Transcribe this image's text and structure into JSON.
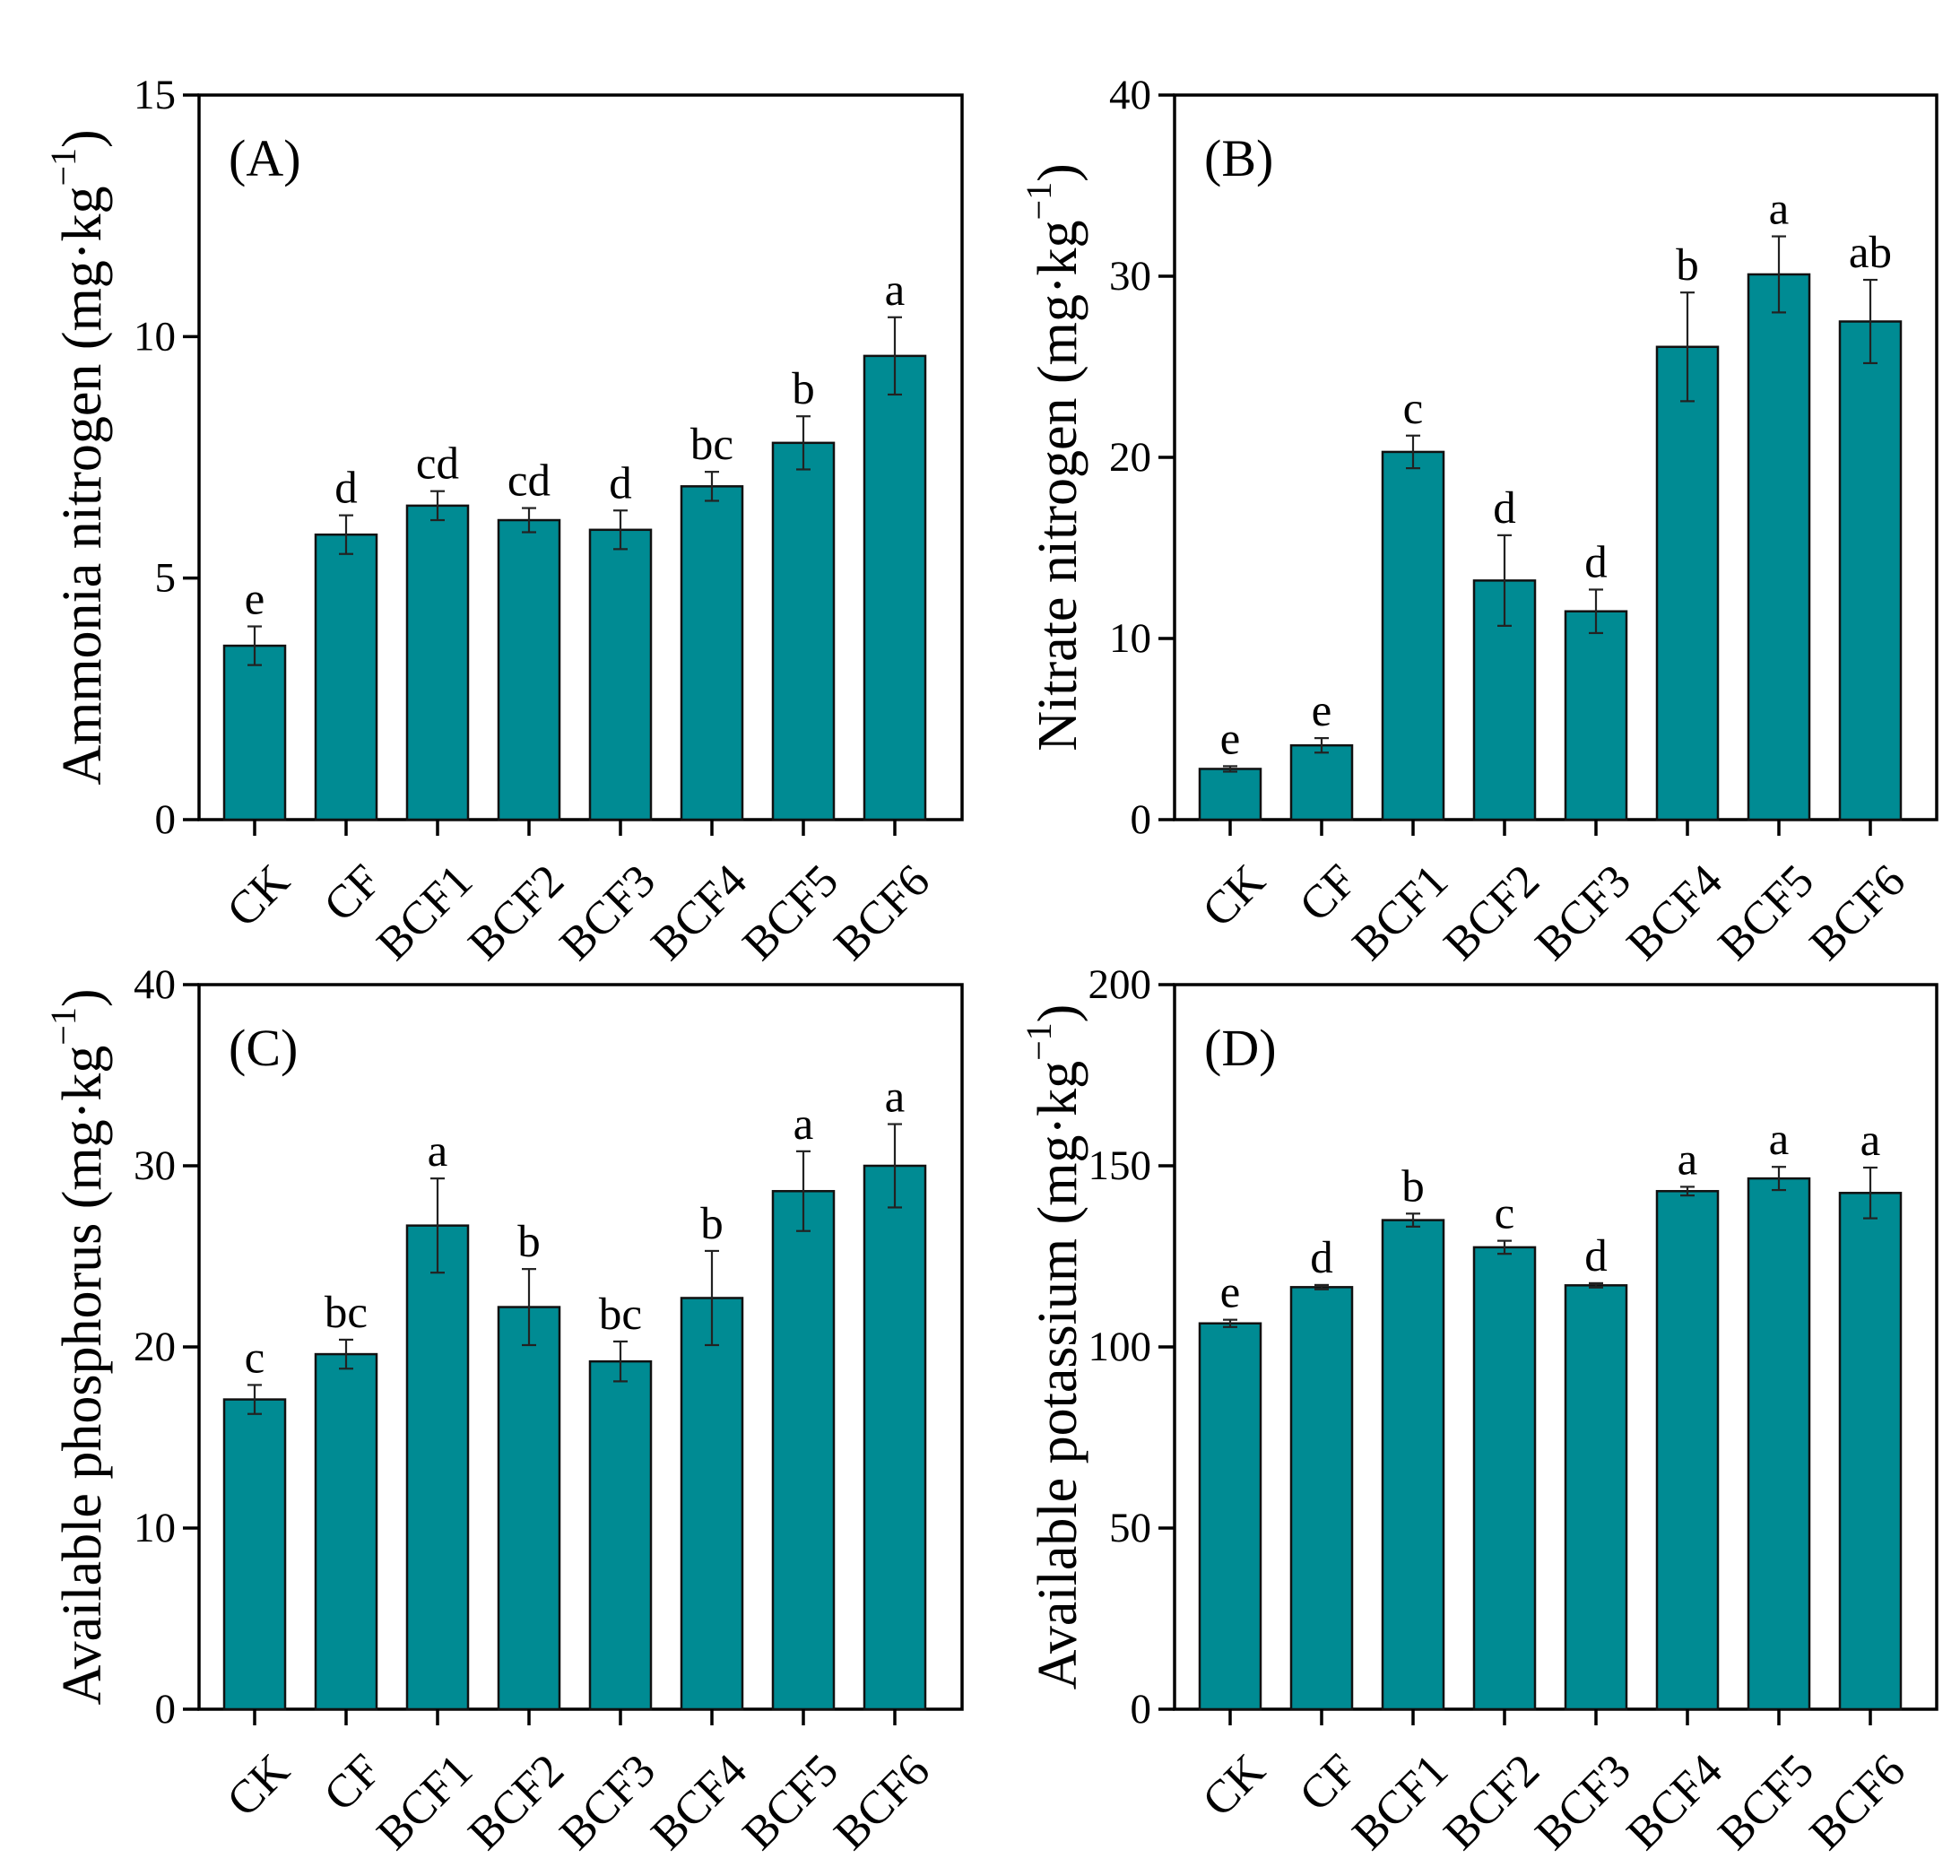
{
  "figure": {
    "bar_color": "#008B93",
    "bar_stroke": "#111111"
  },
  "chart_data": [
    {
      "type": "bar",
      "panel": "(A)",
      "title": "",
      "xlabel": "",
      "ylabel": "Ammonia nitrogen",
      "ylabel_unit_prefix": "(mg·kg",
      "ylabel_unit_exp": "−1",
      "ylabel_unit_suffix": ")",
      "categories": [
        "CK",
        "CF",
        "BCF1",
        "BCF2",
        "BCF3",
        "BCF4",
        "BCF5",
        "BCF6"
      ],
      "values": [
        3.6,
        5.9,
        6.5,
        6.2,
        6.0,
        6.9,
        7.8,
        9.6
      ],
      "errors": [
        0.4,
        0.4,
        0.3,
        0.25,
        0.4,
        0.3,
        0.55,
        0.8
      ],
      "letters": [
        "e",
        "d",
        "cd",
        "cd",
        "d",
        "bc",
        "b",
        "a"
      ],
      "ylim": [
        0,
        15
      ],
      "yticks": [
        0,
        5,
        10,
        15
      ],
      "ytick_labels": [
        "0",
        "5",
        "10",
        "15"
      ]
    },
    {
      "type": "bar",
      "panel": "(B)",
      "title": "",
      "xlabel": "",
      "ylabel": "Nitrate nitrogen",
      "ylabel_unit_prefix": "(mg·kg",
      "ylabel_unit_exp": "−1",
      "ylabel_unit_suffix": ")",
      "categories": [
        "CK",
        "CF",
        "BCF1",
        "BCF2",
        "BCF3",
        "BCF4",
        "BCF5",
        "BCF6"
      ],
      "values": [
        2.8,
        4.1,
        20.3,
        13.2,
        11.5,
        26.1,
        30.1,
        27.5
      ],
      "errors": [
        0.15,
        0.4,
        0.9,
        2.5,
        1.2,
        3.0,
        2.1,
        2.3
      ],
      "letters": [
        "e",
        "e",
        "c",
        "d",
        "d",
        "b",
        "a",
        "ab"
      ],
      "ylim": [
        0,
        40
      ],
      "yticks": [
        0,
        10,
        20,
        30,
        40
      ],
      "ytick_labels": [
        "0",
        "10",
        "20",
        "30",
        "40"
      ]
    },
    {
      "type": "bar",
      "panel": "(C)",
      "title": "",
      "xlabel": "",
      "ylabel": "Available phosphorus",
      "ylabel_unit_prefix": "(mg·kg",
      "ylabel_unit_exp": "−1",
      "ylabel_unit_suffix": ")",
      "categories": [
        "CK",
        "CF",
        "BCF1",
        "BCF2",
        "BCF3",
        "BCF4",
        "BCF5",
        "BCF6"
      ],
      "values": [
        17.1,
        19.6,
        26.7,
        22.2,
        19.2,
        22.7,
        28.6,
        30.0
      ],
      "errors": [
        0.8,
        0.8,
        2.6,
        2.1,
        1.1,
        2.6,
        2.2,
        2.3
      ],
      "letters": [
        "c",
        "bc",
        "a",
        "b",
        "bc",
        "b",
        "a",
        "a"
      ],
      "ylim": [
        0,
        40
      ],
      "yticks": [
        0,
        10,
        20,
        30,
        40
      ],
      "ytick_labels": [
        "0",
        "10",
        "20",
        "30",
        "40"
      ]
    },
    {
      "type": "bar",
      "panel": "(D)",
      "title": "",
      "xlabel": "",
      "ylabel": "Available potassium",
      "ylabel_unit_prefix": "(mg·kg",
      "ylabel_unit_exp": "−1",
      "ylabel_unit_suffix": ")",
      "categories": [
        "CK",
        "CF",
        "BCF1",
        "BCF2",
        "BCF3",
        "BCF4",
        "BCF5",
        "BCF6"
      ],
      "values": [
        106.5,
        116.5,
        135.0,
        127.5,
        117.0,
        143.0,
        146.5,
        142.5
      ],
      "errors": [
        1.0,
        0.6,
        1.8,
        1.8,
        0.6,
        1.2,
        3.2,
        7.0
      ],
      "letters": [
        "e",
        "d",
        "b",
        "c",
        "d",
        "a",
        "a",
        "a"
      ],
      "ylim": [
        0,
        200
      ],
      "yticks": [
        0,
        50,
        100,
        150,
        200
      ],
      "ytick_labels": [
        "0",
        "50",
        "100",
        "150",
        "200"
      ]
    }
  ]
}
